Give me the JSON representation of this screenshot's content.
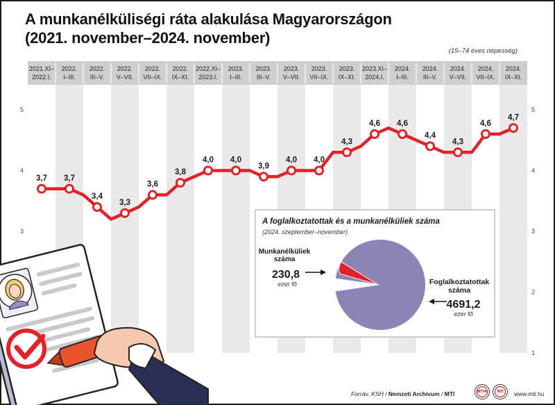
{
  "title_line1": "A munkanélküliségi ráta alakulása Magyarországon",
  "title_line2": "(2021. november–2024. november)",
  "population_note": "(15–74 éves népesség)",
  "chart_data": {
    "type": "line",
    "title": "A munkanélküliségi ráta alakulása Magyarországon (2021. november–2024. november)",
    "periods": [
      [
        "2021.XI–",
        "2022.I."
      ],
      [
        "2022.",
        "I–III."
      ],
      [
        "2022.",
        "III–V."
      ],
      [
        "2022.",
        "V–VII."
      ],
      [
        "2022.",
        "VII–IX."
      ],
      [
        "2022.",
        "IX–XI."
      ],
      [
        "2022.XI–",
        "2023.I."
      ],
      [
        "2023.",
        "I–III."
      ],
      [
        "2023.",
        "III–V."
      ],
      [
        "2023.",
        "V–VII."
      ],
      [
        "2023.",
        "VII–IX."
      ],
      [
        "2023.",
        "IX–XI."
      ],
      [
        "2023.XI–",
        "2024.I."
      ],
      [
        "2024.",
        "I–III."
      ],
      [
        "2024.",
        "III–V."
      ],
      [
        "2024.",
        "V–VII."
      ],
      [
        "2024.",
        "VII–IX."
      ],
      [
        "2024.",
        "IX–XI."
      ]
    ],
    "labels": [
      "3,7",
      "3,7",
      "3,4",
      "3,3",
      "3,6",
      "3,8",
      "4,0",
      "4,0",
      "3,9",
      "4,0",
      "4,0",
      "4,3",
      "4,6",
      "4,6",
      "4,4",
      "4,3",
      "4,6",
      "4,7"
    ],
    "marker_values": [
      3.7,
      3.7,
      3.4,
      3.3,
      3.6,
      3.8,
      4.0,
      4.0,
      3.9,
      4.0,
      4.0,
      4.3,
      4.6,
      4.6,
      4.4,
      4.3,
      4.6,
      4.7
    ],
    "monthly_line": [
      {
        "x": 0,
        "y": 3.7
      },
      {
        "x": 0.5,
        "y": 3.7
      },
      {
        "x": 1,
        "y": 3.7
      },
      {
        "x": 1.5,
        "y": 3.6
      },
      {
        "x": 2,
        "y": 3.4
      },
      {
        "x": 2.5,
        "y": 3.2
      },
      {
        "x": 3,
        "y": 3.3
      },
      {
        "x": 3.5,
        "y": 3.4
      },
      {
        "x": 4,
        "y": 3.6
      },
      {
        "x": 4.5,
        "y": 3.6
      },
      {
        "x": 5,
        "y": 3.8
      },
      {
        "x": 5.5,
        "y": 3.9
      },
      {
        "x": 6,
        "y": 4.0
      },
      {
        "x": 6.5,
        "y": 4.0
      },
      {
        "x": 7,
        "y": 4.0
      },
      {
        "x": 7.5,
        "y": 4.0
      },
      {
        "x": 8,
        "y": 3.9
      },
      {
        "x": 8.5,
        "y": 3.9
      },
      {
        "x": 9,
        "y": 4.0
      },
      {
        "x": 9.5,
        "y": 4.0
      },
      {
        "x": 10,
        "y": 4.0
      },
      {
        "x": 10.5,
        "y": 4.3
      },
      {
        "x": 11,
        "y": 4.3
      },
      {
        "x": 11.5,
        "y": 4.4
      },
      {
        "x": 12,
        "y": 4.6
      },
      {
        "x": 12.5,
        "y": 4.7
      },
      {
        "x": 13,
        "y": 4.6
      },
      {
        "x": 13.5,
        "y": 4.5
      },
      {
        "x": 14,
        "y": 4.4
      },
      {
        "x": 14.5,
        "y": 4.3
      },
      {
        "x": 15,
        "y": 4.3
      },
      {
        "x": 15.5,
        "y": 4.3
      },
      {
        "x": 16,
        "y": 4.6
      },
      {
        "x": 16.5,
        "y": 4.6
      },
      {
        "x": 17,
        "y": 4.7
      }
    ],
    "y_ticks": [
      "5",
      "4",
      "3",
      "2",
      "1"
    ],
    "ylim": [
      1,
      5
    ],
    "grid": "alternating vertical bands",
    "line_color": "#e2222b",
    "band_color": "#e9e9e9",
    "header_color": "#cfcfcf"
  },
  "pie": {
    "title": "A foglalkoztatottak és a munkanélküliek száma",
    "subtitle": "(2024. szeptember–november)",
    "slices": [
      {
        "label_lines": [
          "Munkanélküliek",
          "száma"
        ],
        "value_text": "230,8",
        "unit": "ezer fő",
        "value": 230.8,
        "color": "#e2222b"
      },
      {
        "label_lines": [
          "Foglalkoztatottak",
          "száma"
        ],
        "value_text": "4691,2",
        "unit": "ezer fő",
        "value": 4691.2,
        "color": "#8a85b5"
      }
    ]
  },
  "footer": {
    "source_prefix": "Forrás: KSH / ",
    "source_bold": "Nemzeti Archívum",
    "source_sep": " / ",
    "source_mti": "MTI",
    "logo1": "MTVA",
    "logo2": "MTI",
    "url": "www.mti.hu"
  }
}
